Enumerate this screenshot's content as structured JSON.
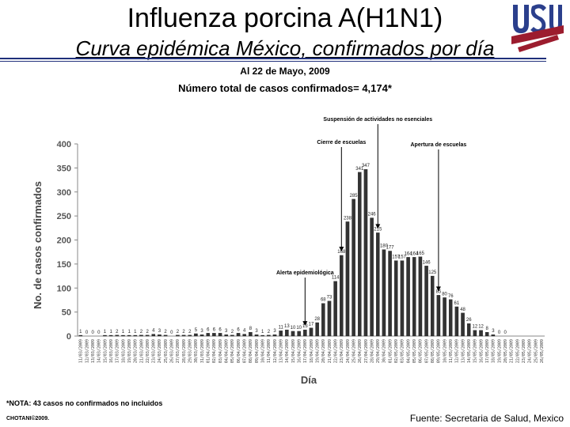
{
  "header": {
    "title": "Influenza porcina A(H1N1)",
    "subtitle": "Curva epidémica México, confirmados por día",
    "date_line": "Al 22 de Mayo, 2009",
    "total_line": "Número total de casos confirmados= 4,174*"
  },
  "logo": {
    "letters": [
      "U",
      "S",
      "U"
    ],
    "colors": {
      "navy": "#2b3f8c",
      "red": "#9c1c2e"
    }
  },
  "footer": {
    "note": "*NOTA: 43 casos no confirmados no incluidos",
    "credit": "CHOTANI©2009.",
    "source": "Fuente: Secretaria de Salud, Mexico"
  },
  "chart_data": {
    "type": "bar",
    "title": "",
    "xlabel": "Día",
    "ylabel": "No. de casos confirmados",
    "ylim": [
      0,
      400
    ],
    "yticks": [
      0,
      50,
      100,
      150,
      200,
      250,
      300,
      350,
      400
    ],
    "grid": false,
    "bar_color": "#333333",
    "categories": [
      "11/03/2009",
      "12/03/2009",
      "13/03/2009",
      "14/03/2009",
      "15/03/2009",
      "16/03/2009",
      "17/03/2009",
      "18/03/2009",
      "19/03/2009",
      "20/03/2009",
      "21/03/2009",
      "22/03/2009",
      "23/03/2009",
      "24/03/2009",
      "25/03/2009",
      "26/03/2009",
      "27/03/2009",
      "28/03/2009",
      "29/03/2009",
      "30/03/2009",
      "31/03/2009",
      "01/04/2009",
      "02/04/2009",
      "03/04/2009",
      "04/04/2009",
      "05/04/2009",
      "06/04/2009",
      "07/04/2009",
      "08/04/2009",
      "09/04/2009",
      "10/04/2009",
      "11/04/2009",
      "12/04/2009",
      "13/04/2009",
      "14/04/2009",
      "15/04/2009",
      "16/04/2009",
      "17/04/2009",
      "18/04/2009",
      "19/04/2009",
      "20/04/2009",
      "21/04/2009",
      "22/04/2009",
      "23/04/2009",
      "24/04/2009",
      "25/04/2009",
      "26/04/2009",
      "27/04/2009",
      "28/04/2009",
      "29/04/2009",
      "30/04/2009",
      "01/05/2009",
      "02/05/2009",
      "03/05/2009",
      "04/05/2009",
      "05/05/2009",
      "06/05/2009",
      "07/05/2009",
      "08/05/2009",
      "09/05/2009",
      "10/05/2009",
      "11/05/2009",
      "12/05/2009",
      "13/05/2009",
      "14/05/2009",
      "15/05/2009",
      "16/05/2009",
      "17/05/2009",
      "18/05/2009",
      "19/05/2009",
      "20/05/2009",
      "21/05/2009",
      "22/05/2009",
      "23/05/2009",
      "24/05/2009",
      "25/05/2009",
      "26/05/2009"
    ],
    "values": [
      1,
      0,
      0,
      0,
      1,
      1,
      2,
      1,
      1,
      1,
      2,
      2,
      4,
      3,
      2,
      0,
      2,
      2,
      2,
      5,
      3,
      6,
      6,
      6,
      3,
      2,
      6,
      4,
      8,
      3,
      1,
      2,
      3,
      11,
      13,
      10,
      10,
      13,
      17,
      28,
      68,
      73,
      114,
      168,
      238,
      285,
      341,
      347,
      246,
      215,
      180,
      177,
      157,
      157,
      164,
      164,
      165,
      146,
      125,
      85,
      80,
      76,
      61,
      48,
      26,
      12,
      12,
      8,
      3,
      0,
      0,
      0,
      0,
      0,
      0,
      0,
      0
    ],
    "data_labels": [
      "1",
      "0",
      "0",
      "0",
      "1",
      "1",
      "2",
      "1",
      "1",
      "1",
      "2",
      "2",
      "4",
      "3",
      "2",
      "0",
      "2",
      "2",
      "2",
      "5",
      "3",
      "6",
      "6",
      "6",
      "3",
      "2",
      "6",
      "4",
      "8",
      "3",
      "1",
      "2",
      "3",
      "11",
      "13",
      "10",
      "10",
      "13",
      "17",
      "28",
      "68",
      "73",
      "114",
      "168",
      "238",
      "285",
      "341",
      "347",
      "246",
      "215",
      "180",
      "177",
      "157",
      "157",
      "164",
      "164",
      "165",
      "146",
      "125",
      "85",
      "80",
      "76",
      "61",
      "48",
      "26",
      "12",
      "12",
      "8",
      "3",
      "0",
      "0",
      "",
      "",
      "",
      "",
      "",
      ""
    ],
    "annotations": [
      {
        "text": "Alerta epidemiológica",
        "at": "17/04/2009"
      },
      {
        "text": "Cierre de escuelas",
        "at": "23/04/2009"
      },
      {
        "text": "Suspensión de actividades no esenciales",
        "at": "29/04/2009"
      },
      {
        "text": "Apertura de escuelas",
        "at": "09/05/2009"
      }
    ]
  }
}
